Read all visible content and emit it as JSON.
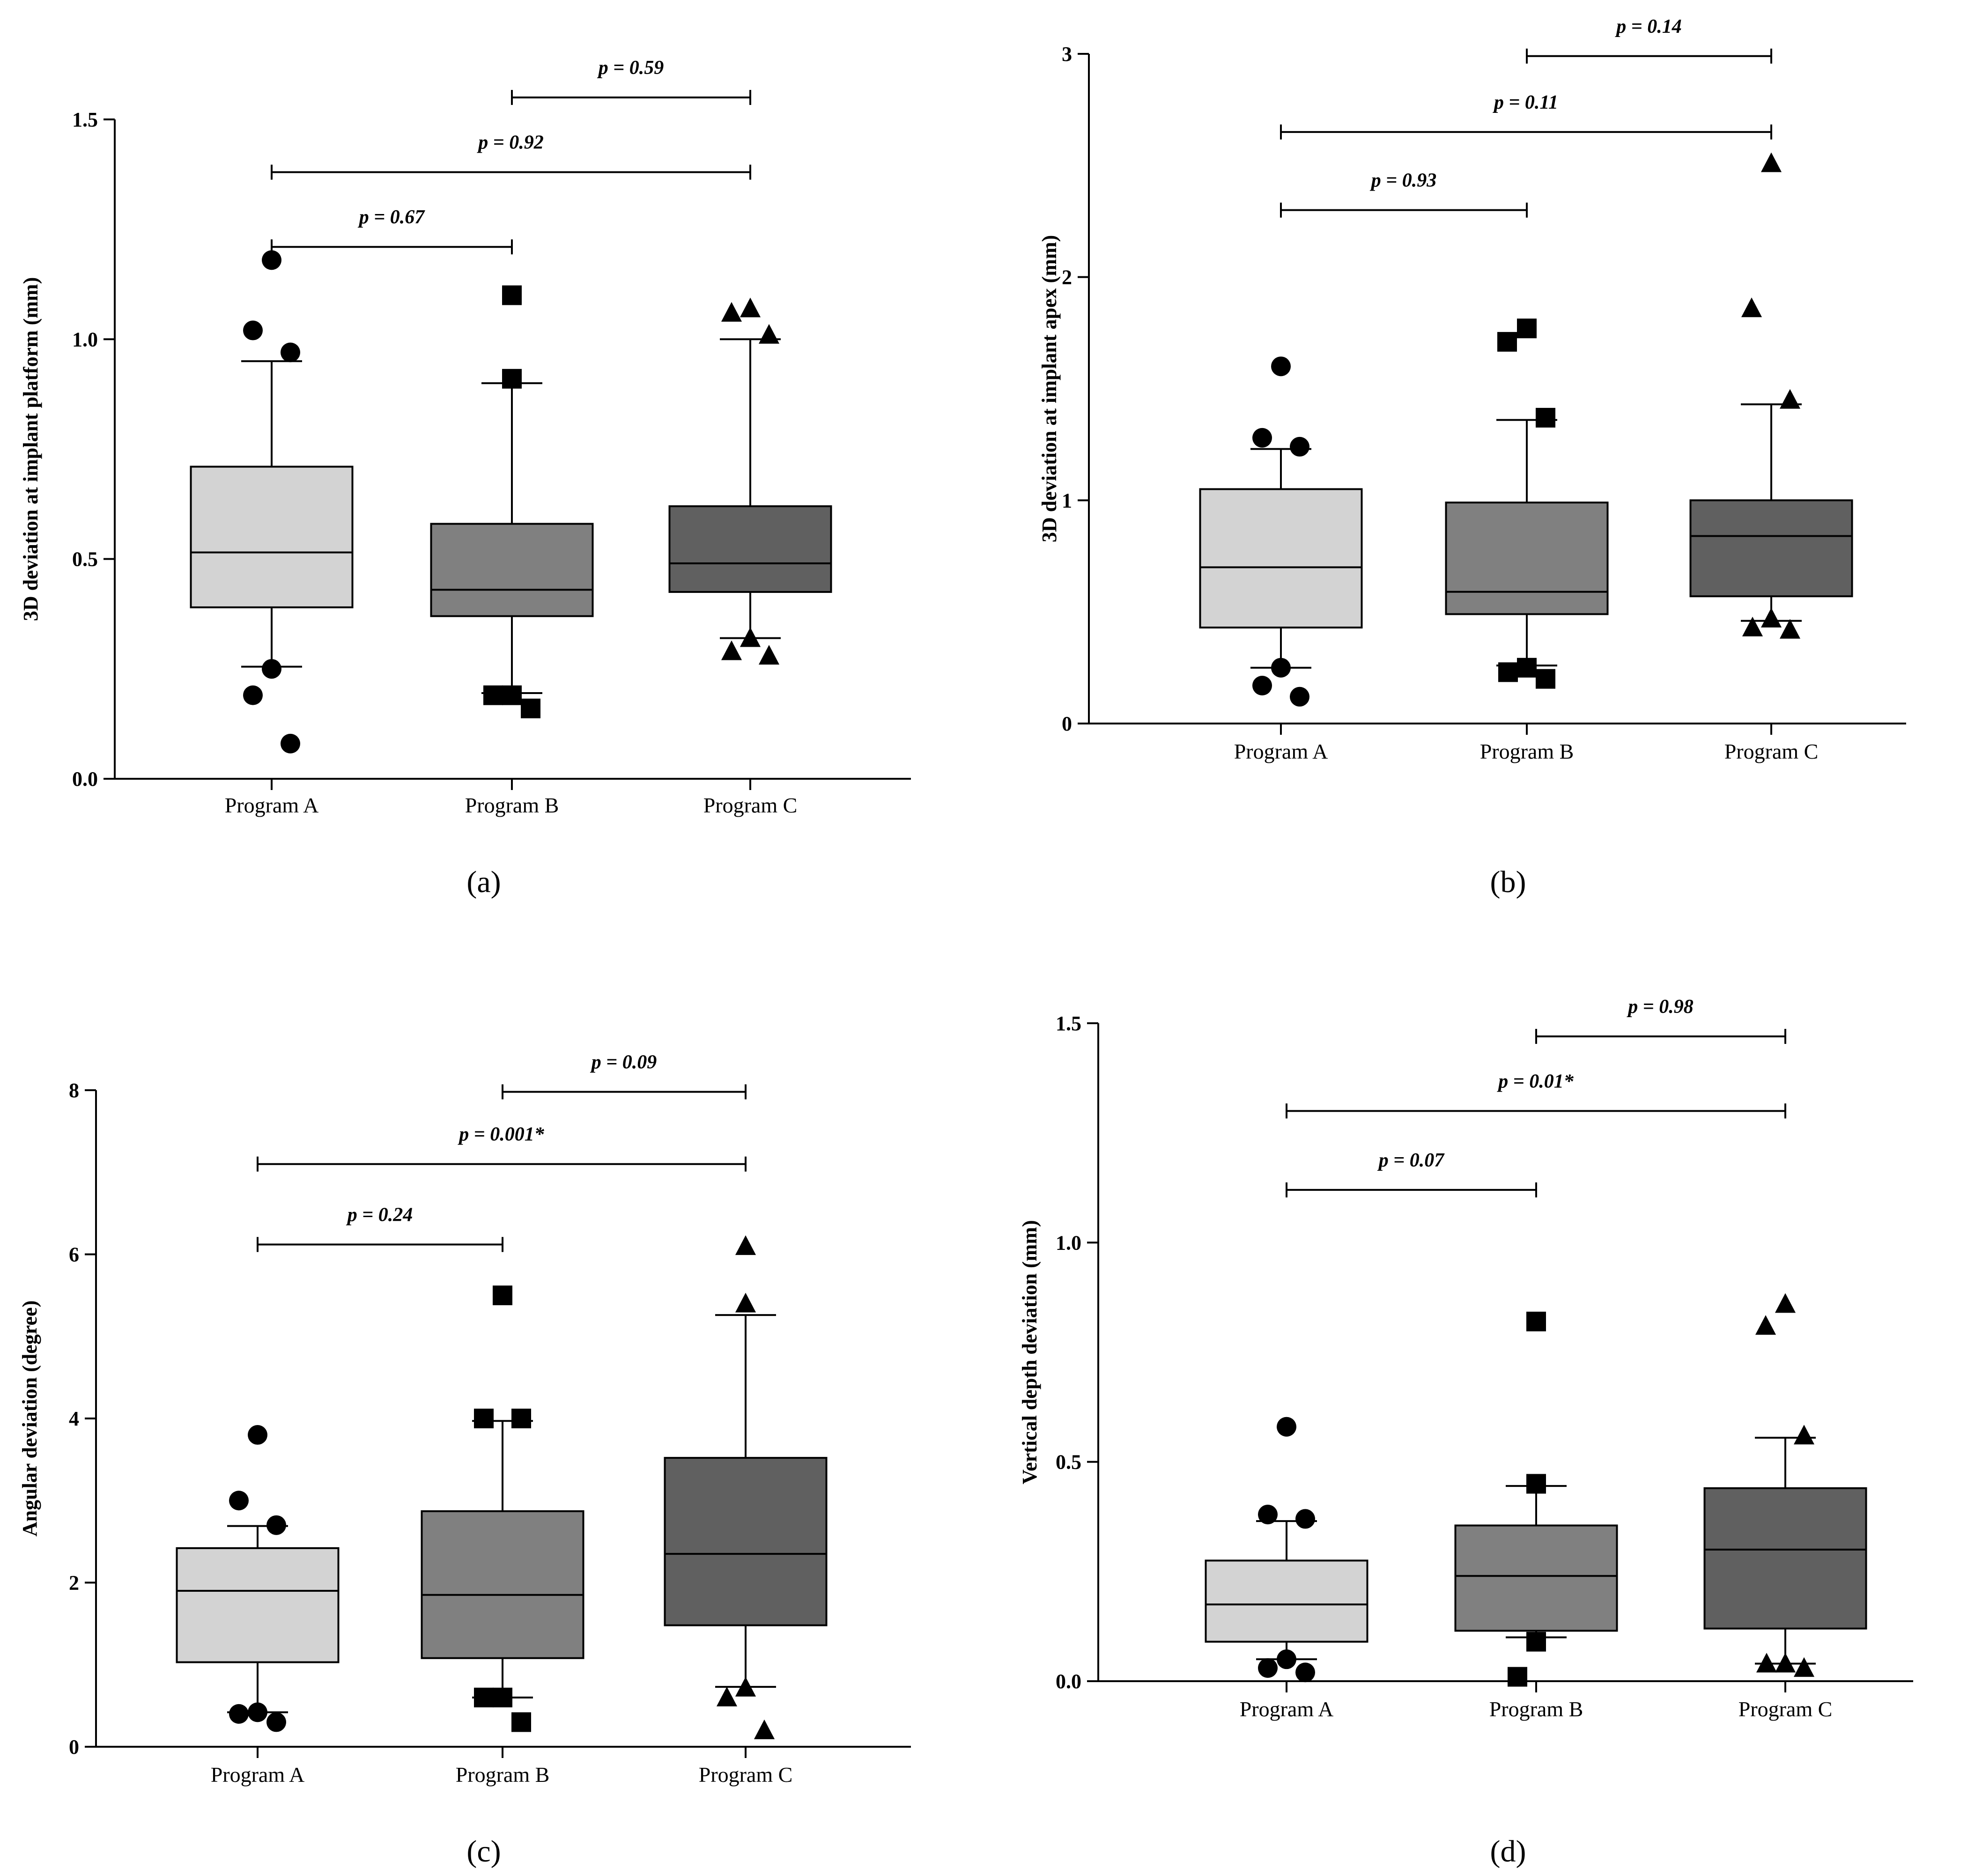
{
  "chart_data": [
    {
      "type": "box",
      "panel": "(a)",
      "ylabel": "3D deviation at implant platform (mm)",
      "ylim": [
        0,
        1.5
      ],
      "yticks": [
        0,
        0.5,
        1,
        1.5
      ],
      "ytick_labels": [
        "0.0",
        "0.5",
        "1.0",
        "1.5"
      ],
      "categories": [
        "Program A",
        "Program B",
        "Program C"
      ],
      "boxes": [
        {
          "name": "Program A",
          "fill": "#d3d3d3",
          "marker": "circle",
          "whisker_low": 0.255,
          "q1": 0.39,
          "median": 0.515,
          "q3": 0.71,
          "whisker_high": 0.95,
          "outliers": [
            1.18,
            1.02,
            0.97,
            0.25,
            0.19,
            0.08
          ]
        },
        {
          "name": "Program B",
          "fill": "#808080",
          "marker": "square",
          "whisker_low": 0.195,
          "q1": 0.37,
          "median": 0.43,
          "q3": 0.58,
          "whisker_high": 0.9,
          "outliers": [
            1.1,
            0.91,
            0.19,
            0.19,
            0.16
          ]
        },
        {
          "name": "Program C",
          "fill": "#606060",
          "marker": "triangle",
          "whisker_low": 0.32,
          "q1": 0.425,
          "median": 0.49,
          "q3": 0.62,
          "whisker_high": 1.0,
          "outliers": [
            1.07,
            1.06,
            1.01,
            0.32,
            0.29,
            0.28
          ]
        }
      ],
      "comparisons": [
        {
          "from": 0,
          "to": 1,
          "y": 1.21,
          "label": "p = 0.67"
        },
        {
          "from": 0,
          "to": 2,
          "y": 1.38,
          "label": "p = 0.92"
        },
        {
          "from": 1,
          "to": 2,
          "y": 1.55,
          "label": "p = 0.59"
        }
      ]
    },
    {
      "type": "box",
      "panel": "(b)",
      "ylabel": "3D deviation at implant apex (mm)",
      "ylim": [
        0,
        3
      ],
      "yticks": [
        0,
        1,
        2,
        3
      ],
      "ytick_labels": [
        "0",
        "1",
        "2",
        "3"
      ],
      "categories": [
        "Program A",
        "Program B",
        "Program C"
      ],
      "boxes": [
        {
          "name": "Program A",
          "fill": "#d3d3d3",
          "marker": "circle",
          "whisker_low": 0.25,
          "q1": 0.43,
          "median": 0.7,
          "q3": 1.05,
          "whisker_high": 1.23,
          "outliers": [
            1.6,
            1.28,
            1.24,
            0.25,
            0.17,
            0.12
          ]
        },
        {
          "name": "Program B",
          "fill": "#808080",
          "marker": "square",
          "whisker_low": 0.26,
          "q1": 0.49,
          "median": 0.59,
          "q3": 0.99,
          "whisker_high": 1.36,
          "outliers": [
            1.77,
            1.71,
            1.37,
            0.25,
            0.23,
            0.2
          ]
        },
        {
          "name": "Program C",
          "fill": "#606060",
          "marker": "triangle",
          "whisker_low": 0.46,
          "q1": 0.57,
          "median": 0.84,
          "q3": 1.0,
          "whisker_high": 1.43,
          "outliers": [
            2.51,
            1.86,
            1.45,
            0.47,
            0.43,
            0.42
          ]
        }
      ],
      "comparisons": [
        {
          "from": 0,
          "to": 1,
          "y": 2.3,
          "label": "p = 0.93"
        },
        {
          "from": 0,
          "to": 2,
          "y": 2.65,
          "label": "p = 0.11"
        },
        {
          "from": 1,
          "to": 2,
          "y": 2.99,
          "label": "p = 0.14"
        }
      ]
    },
    {
      "type": "box",
      "panel": "(c)",
      "ylabel": "Angular deviation (degree)",
      "ylim": [
        0,
        8
      ],
      "yticks": [
        0,
        2,
        4,
        6,
        8
      ],
      "ytick_labels": [
        "0",
        "2",
        "4",
        "6",
        "8"
      ],
      "categories": [
        "Program A",
        "Program B",
        "Program C"
      ],
      "boxes": [
        {
          "name": "Program A",
          "fill": "#d3d3d3",
          "marker": "circle",
          "whisker_low": 0.42,
          "q1": 1.03,
          "median": 1.9,
          "q3": 2.42,
          "whisker_high": 2.69,
          "outliers": [
            3.8,
            3.0,
            2.7,
            0.42,
            0.4,
            0.3
          ]
        },
        {
          "name": "Program B",
          "fill": "#808080",
          "marker": "square",
          "whisker_low": 0.6,
          "q1": 1.08,
          "median": 1.85,
          "q3": 2.87,
          "whisker_high": 3.97,
          "outliers": [
            5.5,
            4.0,
            4.0,
            0.6,
            0.6,
            0.3
          ]
        },
        {
          "name": "Program C",
          "fill": "#606060",
          "marker": "triangle",
          "whisker_low": 0.73,
          "q1": 1.48,
          "median": 2.35,
          "q3": 3.52,
          "whisker_high": 5.26,
          "outliers": [
            6.1,
            5.4,
            0.72,
            0.6,
            0.2
          ]
        }
      ],
      "comparisons": [
        {
          "from": 0,
          "to": 1,
          "y": 6.12,
          "label": "p = 0.24"
        },
        {
          "from": 0,
          "to": 2,
          "y": 7.1,
          "label": "p = 0.001*"
        },
        {
          "from": 1,
          "to": 2,
          "y": 7.98,
          "label": "p = 0.09"
        }
      ]
    },
    {
      "type": "box",
      "panel": "(d)",
      "ylabel": "Vertical depth deviation (mm)",
      "ylim": [
        0,
        1.5
      ],
      "yticks": [
        0,
        0.5,
        1,
        1.5
      ],
      "ytick_labels": [
        "0.0",
        "0.5",
        "1.0",
        "1.5"
      ],
      "categories": [
        "Program A",
        "Program B",
        "Program C"
      ],
      "boxes": [
        {
          "name": "Program A",
          "fill": "#d3d3d3",
          "marker": "circle",
          "whisker_low": 0.05,
          "q1": 0.09,
          "median": 0.175,
          "q3": 0.275,
          "whisker_high": 0.365,
          "outliers": [
            0.58,
            0.38,
            0.37,
            0.05,
            0.03,
            0.02
          ]
        },
        {
          "name": "Program B",
          "fill": "#808080",
          "marker": "square",
          "whisker_low": 0.1,
          "q1": 0.115,
          "median": 0.24,
          "q3": 0.355,
          "whisker_high": 0.445,
          "outliers": [
            0.82,
            0.45,
            0.09,
            0.01
          ]
        },
        {
          "name": "Program C",
          "fill": "#606060",
          "marker": "triangle",
          "whisker_low": 0.04,
          "q1": 0.12,
          "median": 0.3,
          "q3": 0.44,
          "whisker_high": 0.555,
          "outliers": [
            0.86,
            0.81,
            0.56,
            0.04,
            0.04,
            0.03
          ]
        }
      ],
      "comparisons": [
        {
          "from": 0,
          "to": 1,
          "y": 1.12,
          "label": "p = 0.07"
        },
        {
          "from": 0,
          "to": 2,
          "y": 1.3,
          "label": "p = 0.01*"
        },
        {
          "from": 1,
          "to": 2,
          "y": 1.47,
          "label": "p = 0.98"
        }
      ]
    }
  ]
}
